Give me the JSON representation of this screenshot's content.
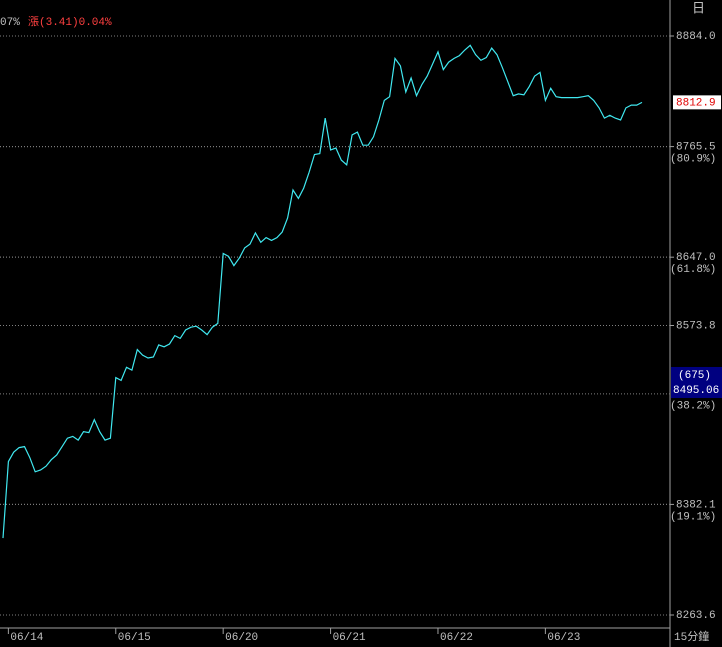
{
  "header": {
    "left": "07%",
    "change": "漲(3.41)0.04%",
    "icon": "日",
    "period": "15分鐘"
  },
  "chart_data": {
    "type": "line",
    "categories": [
      null,
      "06/14",
      null,
      null,
      null,
      null,
      null,
      null,
      null,
      null,
      null,
      null,
      null,
      null,
      null,
      null,
      null,
      null,
      null,
      null,
      null,
      "06/15",
      null,
      null,
      null,
      null,
      null,
      null,
      null,
      null,
      null,
      null,
      null,
      null,
      null,
      null,
      null,
      null,
      null,
      null,
      null,
      "06/20",
      null,
      null,
      null,
      null,
      null,
      null,
      null,
      null,
      null,
      null,
      null,
      null,
      null,
      null,
      null,
      null,
      null,
      null,
      null,
      "06/21",
      null,
      null,
      null,
      null,
      null,
      null,
      null,
      null,
      null,
      null,
      null,
      null,
      null,
      null,
      null,
      null,
      null,
      null,
      null,
      "06/22",
      null,
      null,
      null,
      null,
      null,
      null,
      null,
      null,
      null,
      null,
      null,
      null,
      null,
      null,
      null,
      null,
      null,
      null,
      null,
      "06/23",
      null,
      null,
      null,
      null,
      null,
      null,
      null,
      null,
      null,
      null,
      null,
      null,
      null,
      null,
      null,
      null,
      null,
      null
    ],
    "series": [
      {
        "color": "#40e8f0",
        "values": [
          8346,
          8428,
          8438,
          8443,
          8444,
          8432,
          8417,
          8419,
          8423,
          8430,
          8435,
          8444,
          8453,
          8455,
          8451,
          8460,
          8459,
          8473,
          8460,
          8451,
          8453,
          8518,
          8515,
          8529,
          8526,
          8548,
          8542,
          8539,
          8540,
          8553,
          8551,
          8554,
          8563,
          8560,
          8569,
          8572,
          8573,
          8569,
          8564,
          8572,
          8576,
          8651,
          8648,
          8638,
          8646,
          8657,
          8661,
          8673,
          8663,
          8668,
          8665,
          8668,
          8674,
          8689,
          8719,
          8710,
          8721,
          8738,
          8757,
          8758,
          8796,
          8762,
          8764,
          8751,
          8746,
          8778,
          8781,
          8767,
          8767,
          8776,
          8794,
          8815,
          8819,
          8860,
          8852,
          8824,
          8839,
          8820,
          8832,
          8841,
          8854,
          8867,
          8848,
          8856,
          8860,
          8863,
          8869,
          8874,
          8864,
          8858,
          8861,
          8871,
          8864,
          8850,
          8835,
          8820,
          8822,
          8821,
          8830,
          8841,
          8845,
          8815,
          8828,
          8819,
          8818,
          8818,
          8818,
          8818,
          8819,
          8820,
          8815,
          8807,
          8796,
          8799,
          8796,
          8794,
          8807,
          8810,
          8810,
          8812.9
        ]
      }
    ],
    "ylim": [
      8263.6,
      8884
    ],
    "yticks": [
      {
        "value": 8884,
        "label": "8884.0"
      },
      8765.5,
      {
        "value": 8647,
        "label": "8647.0"
      },
      8573.8,
      8382.1,
      8263.6
    ],
    "fib_levels": [
      {
        "value": 8765.5,
        "label": "(80.9%)"
      },
      {
        "value": 8647,
        "label": "(61.8%)"
      },
      {
        "value": 8500.6,
        "label": "(38.2%)"
      },
      {
        "value": 8382.1,
        "label": "(19.1%)"
      }
    ],
    "cursor": {
      "label": "(675)",
      "value": 8495.06
    },
    "grid": true
  }
}
